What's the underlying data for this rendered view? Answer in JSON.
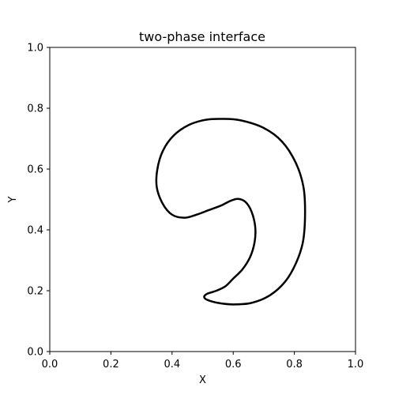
{
  "chart_data": {
    "type": "line",
    "title": "two-phase interface",
    "xlabel": "X",
    "ylabel": "Y",
    "xlim": [
      0.0,
      1.0
    ],
    "ylim": [
      0.0,
      1.0
    ],
    "x_ticks": [
      "0.0",
      "0.2",
      "0.4",
      "0.6",
      "0.8",
      "1.0"
    ],
    "y_ticks": [
      "0.0",
      "0.2",
      "0.4",
      "0.6",
      "0.8",
      "1.0"
    ],
    "grid": false,
    "line_color": "#000000",
    "series": [
      {
        "closed": true,
        "points": [
          [
            0.565,
            0.765
          ],
          [
            0.625,
            0.76
          ],
          [
            0.7,
            0.735
          ],
          [
            0.76,
            0.69
          ],
          [
            0.805,
            0.62
          ],
          [
            0.83,
            0.54
          ],
          [
            0.835,
            0.45
          ],
          [
            0.828,
            0.36
          ],
          [
            0.805,
            0.29
          ],
          [
            0.77,
            0.23
          ],
          [
            0.72,
            0.185
          ],
          [
            0.66,
            0.16
          ],
          [
            0.6,
            0.155
          ],
          [
            0.55,
            0.16
          ],
          [
            0.515,
            0.17
          ],
          [
            0.505,
            0.18
          ],
          [
            0.515,
            0.19
          ],
          [
            0.545,
            0.2
          ],
          [
            0.575,
            0.215
          ],
          [
            0.6,
            0.24
          ],
          [
            0.63,
            0.27
          ],
          [
            0.655,
            0.31
          ],
          [
            0.67,
            0.36
          ],
          [
            0.672,
            0.41
          ],
          [
            0.66,
            0.46
          ],
          [
            0.64,
            0.492
          ],
          [
            0.615,
            0.502
          ],
          [
            0.59,
            0.495
          ],
          [
            0.56,
            0.48
          ],
          [
            0.52,
            0.465
          ],
          [
            0.48,
            0.45
          ],
          [
            0.44,
            0.44
          ],
          [
            0.4,
            0.45
          ],
          [
            0.37,
            0.485
          ],
          [
            0.35,
            0.54
          ],
          [
            0.352,
            0.6
          ],
          [
            0.37,
            0.66
          ],
          [
            0.405,
            0.71
          ],
          [
            0.455,
            0.745
          ],
          [
            0.51,
            0.762
          ]
        ]
      }
    ]
  }
}
